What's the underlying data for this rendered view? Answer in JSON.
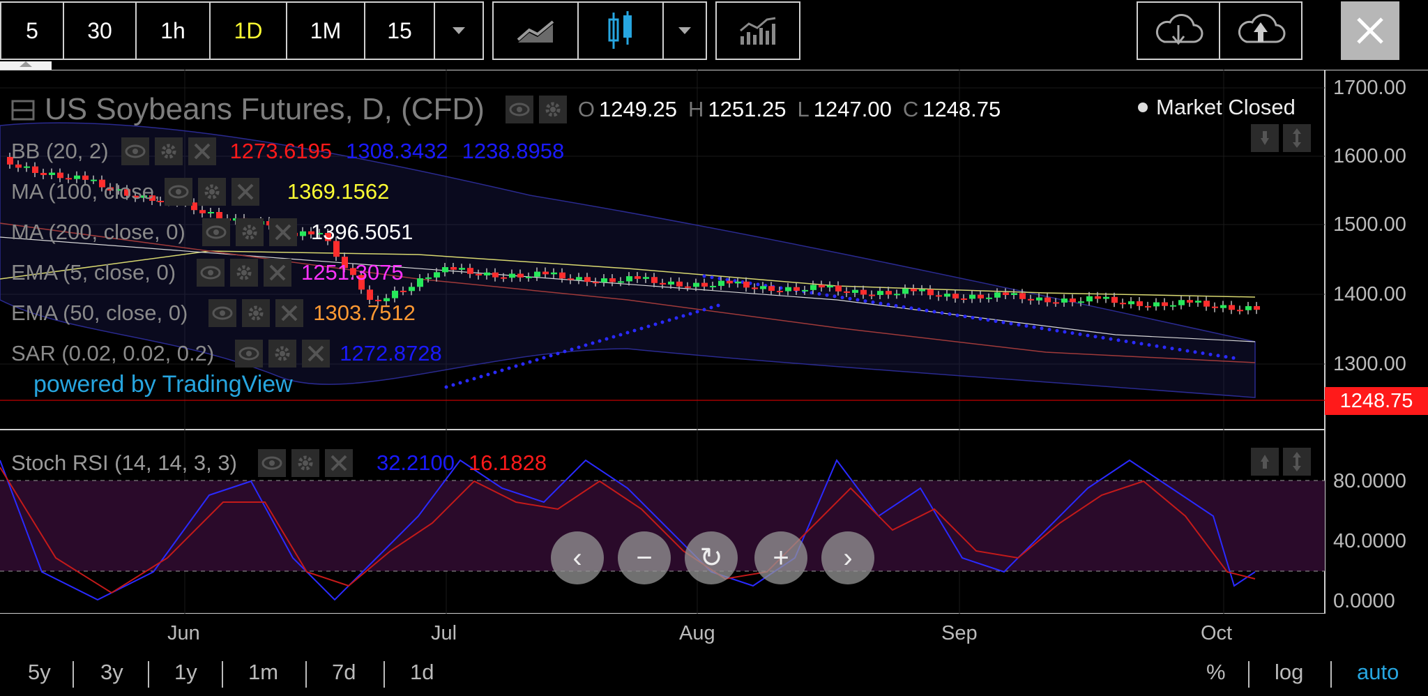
{
  "toolbar": {
    "intervals": [
      {
        "label": "5",
        "active": false,
        "w": 90
      },
      {
        "label": "30",
        "active": false,
        "w": 104
      },
      {
        "label": "1h",
        "active": false,
        "w": 106
      },
      {
        "label": "1D",
        "active": true,
        "w": 110
      },
      {
        "label": "1M",
        "active": false,
        "w": 112
      },
      {
        "label": "15",
        "active": false,
        "w": 100
      }
    ],
    "icons": [
      "line-chart-icon",
      "candlestick-icon",
      "indicators-icon",
      "cloud-download-icon",
      "cloud-upload-icon",
      "close-icon"
    ]
  },
  "title": {
    "symbol": "US Soybeans Futures, D, (CFD)",
    "open_key": "O",
    "open": "1249.25",
    "high_key": "H",
    "high": "1251.25",
    "low_key": "L",
    "low": "1247.00",
    "close_key": "C",
    "close": "1248.75",
    "market_status": "Market Closed"
  },
  "indicators": [
    {
      "id": "bb",
      "name": "BB (20, 2)",
      "values": [
        {
          "v": "1273.6195",
          "c": "#ff1a1a"
        },
        {
          "v": "1308.3432",
          "c": "#1a1aff"
        },
        {
          "v": "1238.8958",
          "c": "#1a1aff"
        }
      ]
    },
    {
      "id": "ma100",
      "name": "MA (100, close, 0)",
      "values": [
        {
          "v": "1369.1562",
          "c": "#ffff33"
        }
      ]
    },
    {
      "id": "ma200",
      "name": "MA (200, close, 0)",
      "values": [
        {
          "v": "1396.5051",
          "c": "#ffffff"
        }
      ]
    },
    {
      "id": "ema5",
      "name": "EMA (5, close, 0)",
      "values": [
        {
          "v": "1251.3075",
          "c": "#ff33ff"
        }
      ]
    },
    {
      "id": "ema50",
      "name": "EMA (50, close, 0)",
      "values": [
        {
          "v": "1303.7512",
          "c": "#ff9933"
        }
      ]
    },
    {
      "id": "sar",
      "name": "SAR (0.02, 0.02, 0.2)",
      "values": [
        {
          "v": "1272.8728",
          "c": "#1a1aff"
        }
      ]
    }
  ],
  "powered_by": "powered by TradingView",
  "price_axis": [
    "1700.00",
    "1600.00",
    "1500.00",
    "1400.00",
    "1300.00"
  ],
  "last_price": "1248.75",
  "stoch": {
    "name": "Stoch RSI (14, 14, 3, 3)",
    "k": "32.2100",
    "k_color": "#1a1aff",
    "d": "16.1828",
    "d_color": "#ff1a1a",
    "axis": [
      "80.0000",
      "40.0000",
      "0.0000"
    ]
  },
  "x_axis": [
    "Jun",
    "Jul",
    "Aug",
    "Sep",
    "Oct"
  ],
  "ranges": [
    "5y",
    "3y",
    "1y",
    "1m",
    "7d",
    "1d"
  ],
  "scales": [
    {
      "label": "%",
      "active": false
    },
    {
      "label": "log",
      "active": false
    },
    {
      "label": "auto",
      "active": true
    }
  ],
  "colors": {
    "up": "#26e85a",
    "down": "#ff2d2d",
    "accent": "#27a6e0"
  }
}
